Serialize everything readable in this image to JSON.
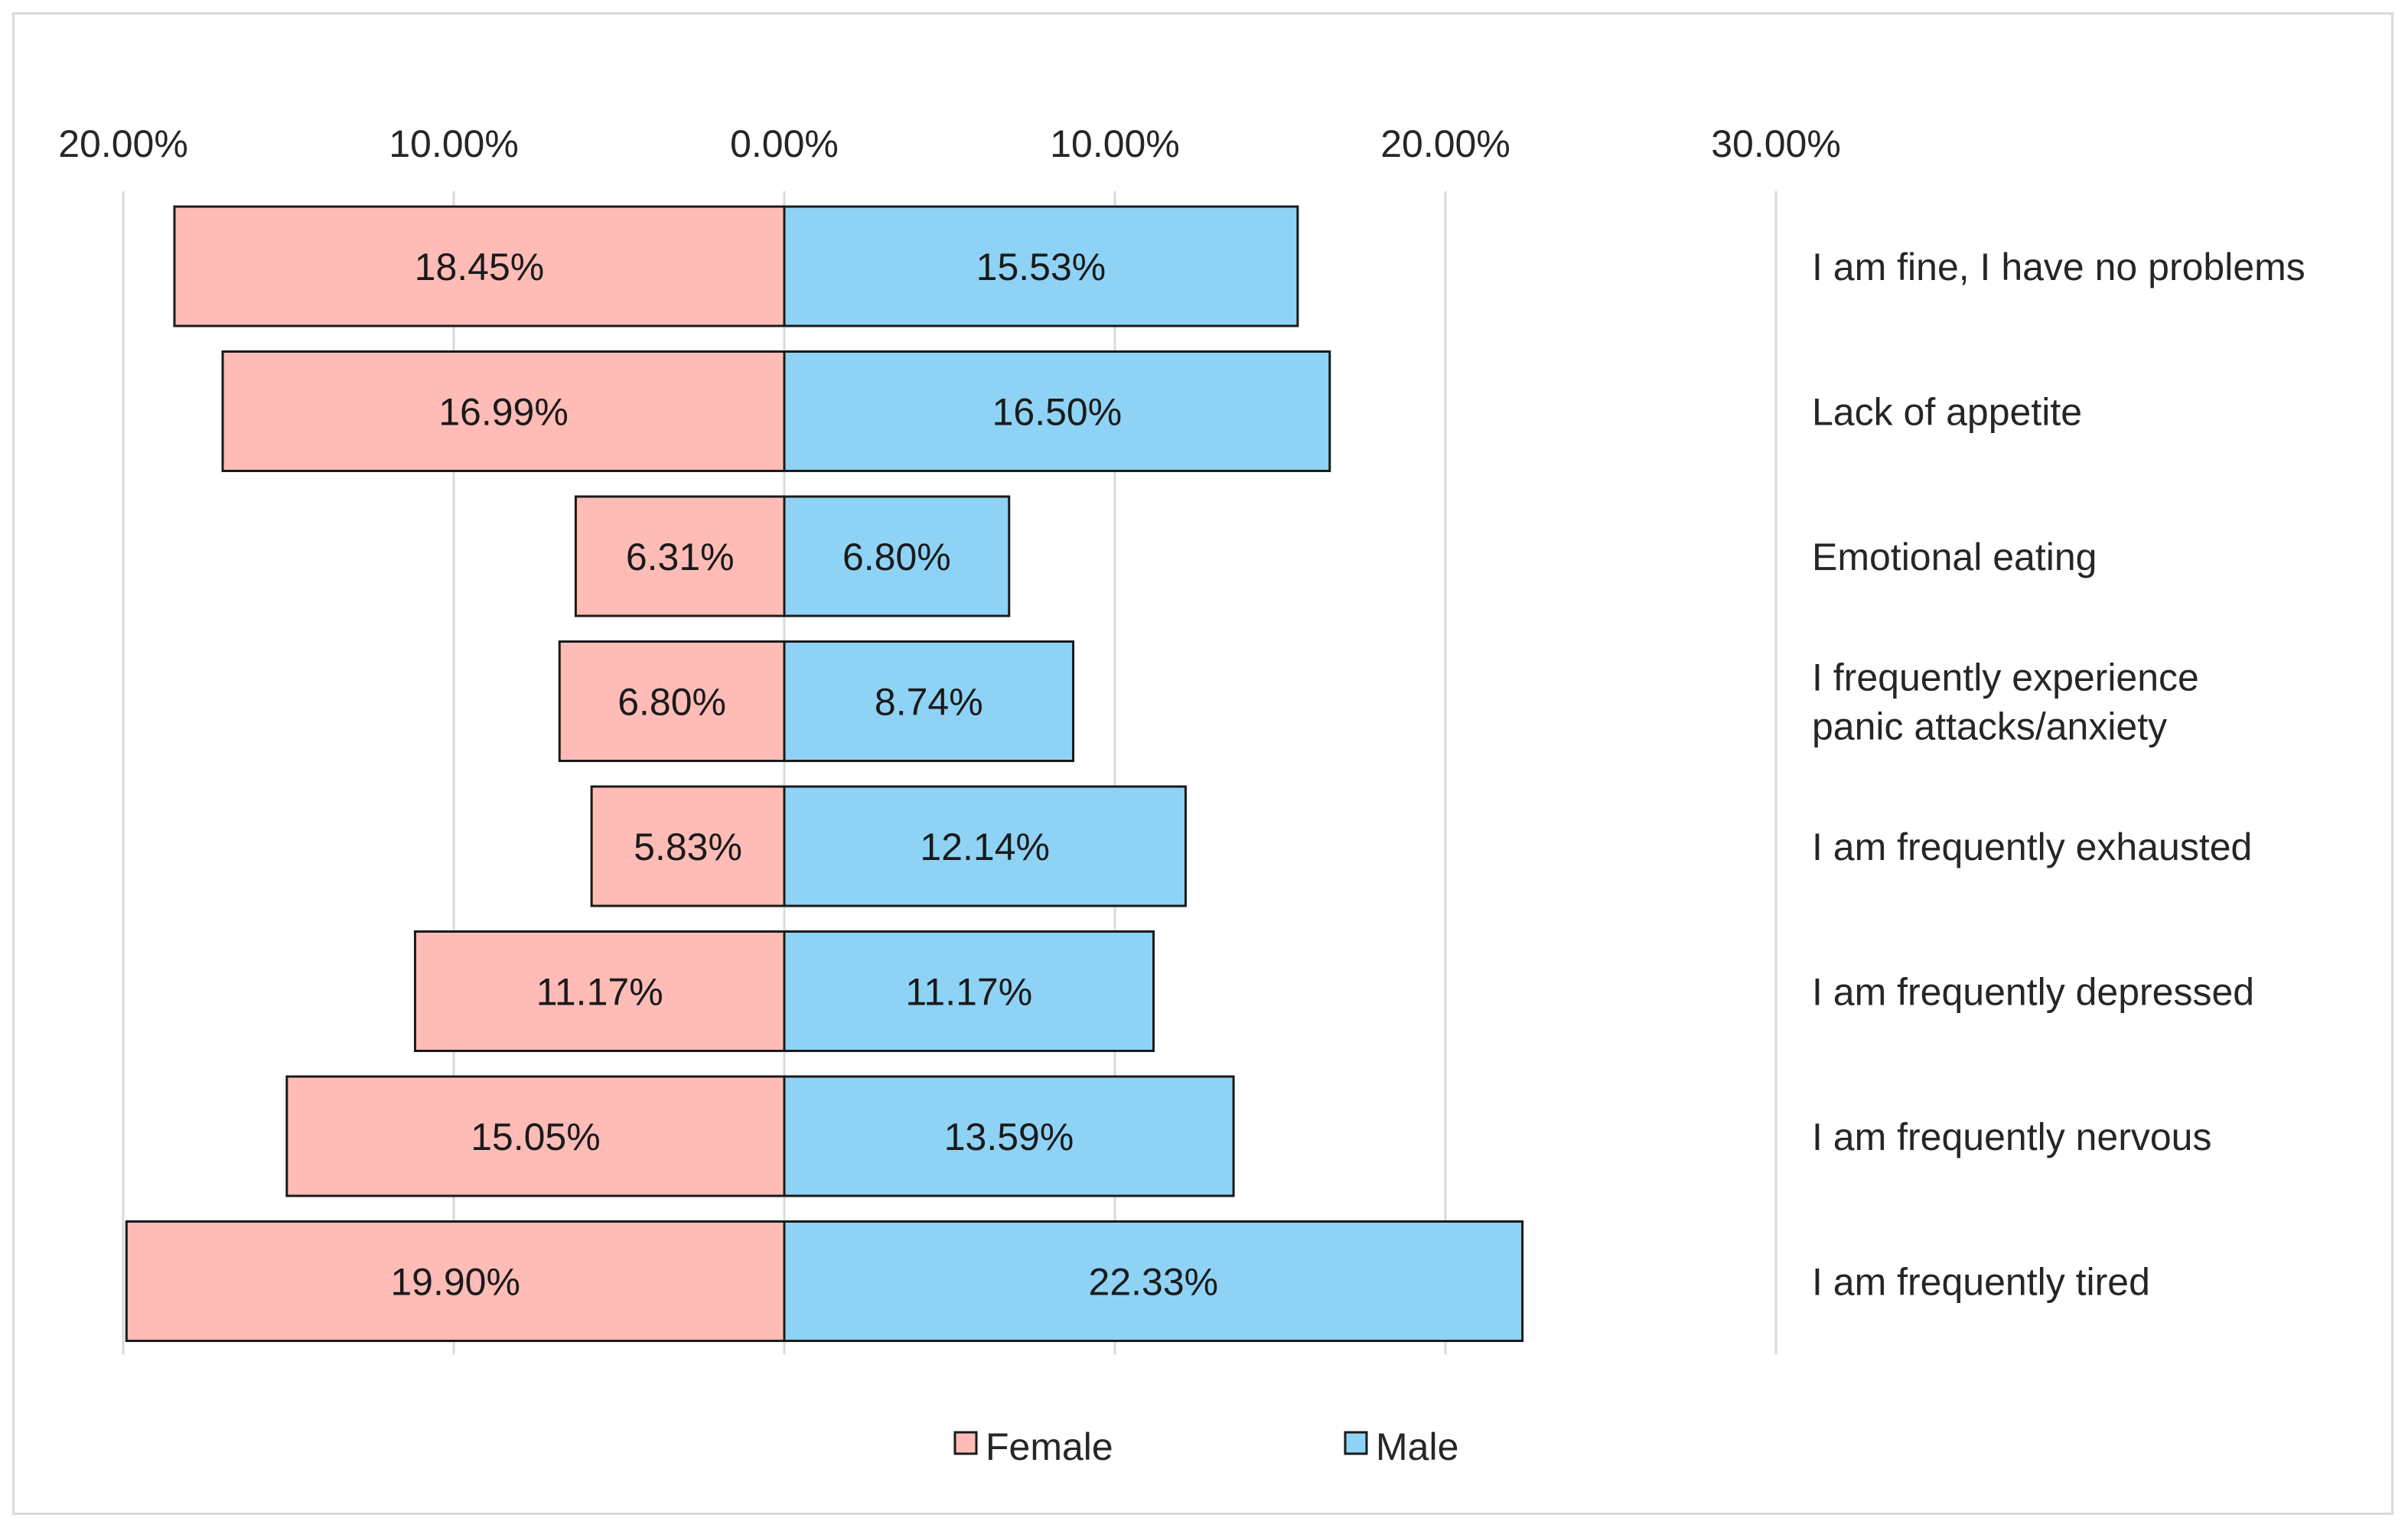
{
  "chart_data": {
    "type": "bar",
    "orientation": "horizontal-diverging",
    "title": "",
    "xlabel": "",
    "ylabel": "",
    "xlim": [
      -20,
      30
    ],
    "xticks": [
      {
        "value": -20,
        "label": "20.00%"
      },
      {
        "value": -10,
        "label": "10.00%"
      },
      {
        "value": 0,
        "label": "0.00%"
      },
      {
        "value": 10,
        "label": "10.00%"
      },
      {
        "value": 20,
        "label": "20.00%"
      },
      {
        "value": 30,
        "label": "30.00%"
      }
    ],
    "grid": true,
    "categories": [
      [
        "I am fine, I have no problems"
      ],
      [
        "Lack of appetite"
      ],
      [
        "Emotional eating"
      ],
      [
        "I frequently experience",
        "panic attacks/anxiety"
      ],
      [
        "I am frequently exhausted"
      ],
      [
        "I am frequently depressed"
      ],
      [
        "I am frequently nervous"
      ],
      [
        "I am frequently tired"
      ]
    ],
    "series": [
      {
        "name": "Female",
        "color": "#ffbcb7",
        "direction": "left",
        "values": [
          18.45,
          16.99,
          6.31,
          6.8,
          5.83,
          11.17,
          15.05,
          19.9
        ],
        "labels": [
          "18.45%",
          "16.99%",
          "6.31%",
          "6.80%",
          "5.83%",
          "11.17%",
          "15.05%",
          "19.90%"
        ]
      },
      {
        "name": "Male",
        "color": "#8ed3f5",
        "direction": "right",
        "values": [
          15.53,
          16.5,
          6.8,
          8.74,
          12.14,
          11.17,
          13.59,
          22.33
        ],
        "labels": [
          "15.53%",
          "16.50%",
          "6.80%",
          "8.74%",
          "12.14%",
          "11.17%",
          "13.59%",
          "22.33%"
        ]
      }
    ],
    "legend": {
      "position": "bottom",
      "items": [
        "Female",
        "Male"
      ]
    }
  },
  "colors": {
    "female": "#ffbcb7",
    "male": "#8ed3f5",
    "bar_outline": "#1a1a1a",
    "gridline": "#d9d9d9"
  }
}
